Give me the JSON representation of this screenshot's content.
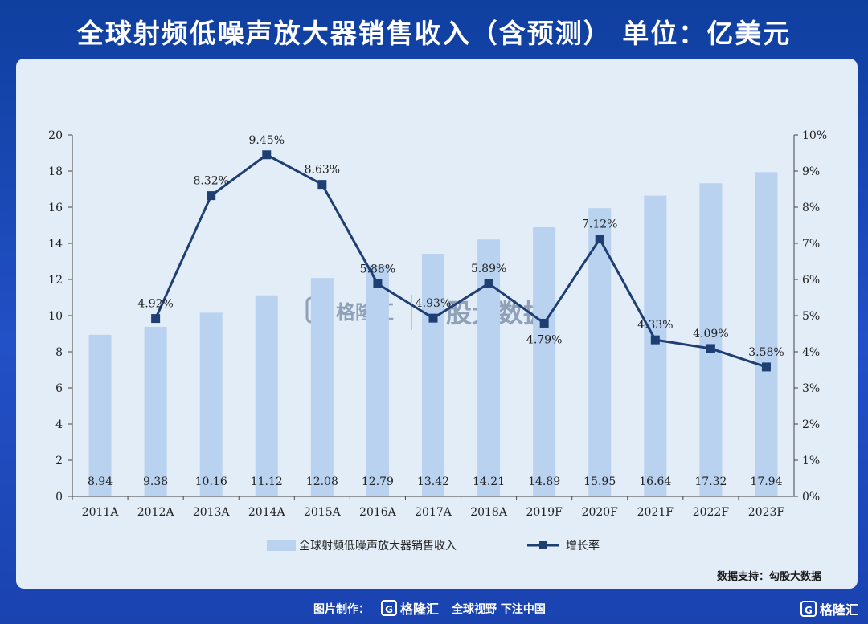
{
  "header": {
    "title": "全球射频低噪声放大器销售收入（含预测）   单位：亿美元"
  },
  "watermark": {
    "brand": "格隆汇",
    "partner": "勾股大数据"
  },
  "source_note": "数据支持：勾股大数据",
  "footer": {
    "credit": "图片制作：",
    "brand": "格隆汇",
    "slogan": "全球视野 下注中国",
    "corner_brand": "格隆汇"
  },
  "colors": {
    "bar": "#b9d2ef",
    "line": "#1f3f73",
    "panel": "#e2edf8",
    "background": "#1a47b5"
  },
  "chart_data": {
    "type": "bar+line",
    "categories": [
      "2011A",
      "2012A",
      "2013A",
      "2014A",
      "2015A",
      "2016A",
      "2017A",
      "2018A",
      "2019F",
      "2020F",
      "2021F",
      "2022F",
      "2023F"
    ],
    "series": [
      {
        "name": "全球射频低噪声放大器销售收入",
        "type": "bar",
        "axis": "left",
        "values": [
          8.94,
          9.38,
          10.16,
          11.12,
          12.08,
          12.79,
          13.42,
          14.21,
          14.89,
          15.95,
          16.64,
          17.32,
          17.94
        ],
        "labels": [
          "8.94",
          "9.38",
          "10.16",
          "11.12",
          "12.08",
          "12.79",
          "13.42",
          "14.21",
          "14.89",
          "15.95",
          "16.64",
          "17.32",
          "17.94"
        ]
      },
      {
        "name": "增长率",
        "type": "line",
        "axis": "right",
        "values": [
          null,
          4.92,
          8.32,
          9.45,
          8.63,
          5.88,
          4.93,
          5.89,
          4.79,
          7.12,
          4.33,
          4.09,
          3.58
        ],
        "labels": [
          "",
          "4.92%",
          "8.32%",
          "9.45%",
          "8.63%",
          "5.88%",
          "4.93%",
          "5.89%",
          "4.79%",
          "7.12%",
          "4.33%",
          "4.09%",
          "3.58%"
        ]
      }
    ],
    "y_left": {
      "min": 0,
      "max": 20,
      "step": 2,
      "ticks": [
        "0",
        "2",
        "4",
        "6",
        "8",
        "10",
        "12",
        "14",
        "16",
        "18",
        "20"
      ]
    },
    "y_right": {
      "min": 0,
      "max": 10,
      "step": 1,
      "ticks": [
        "0%",
        "1%",
        "2%",
        "3%",
        "4%",
        "5%",
        "6%",
        "7%",
        "8%",
        "9%",
        "10%"
      ]
    },
    "legend": {
      "placement": "bottom",
      "bar_label": "全球射频低噪声放大器销售收入",
      "line_label": "增长率"
    },
    "grid": false
  }
}
